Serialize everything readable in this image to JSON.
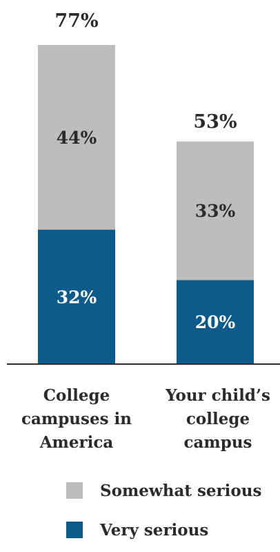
{
  "chart_data": {
    "type": "bar",
    "stacked": true,
    "categories": [
      [
        "College",
        "campuses in",
        "America"
      ],
      [
        "Your child’s",
        "college",
        "campus"
      ]
    ],
    "series": [
      {
        "name": "Very serious",
        "values": [
          32,
          20
        ],
        "labels": [
          "32%",
          "20%"
        ],
        "color": "#0e5a8a",
        "label_color": "#ffffff"
      },
      {
        "name": "Somewhat serious",
        "values": [
          44,
          33
        ],
        "labels": [
          "44%",
          "33%"
        ],
        "color": "#bebcbc",
        "label_color": "#2b2b2b"
      }
    ],
    "totals": [
      77,
      53
    ],
    "total_labels": [
      "77%",
      "53%"
    ],
    "legend": {
      "placement": "bottom",
      "entries": [
        {
          "name": "Somewhat serious",
          "color": "#bebcbc"
        },
        {
          "name": "Very serious",
          "color": "#0e5a8a"
        }
      ]
    },
    "ylim": [
      0,
      77
    ],
    "grid": false
  }
}
